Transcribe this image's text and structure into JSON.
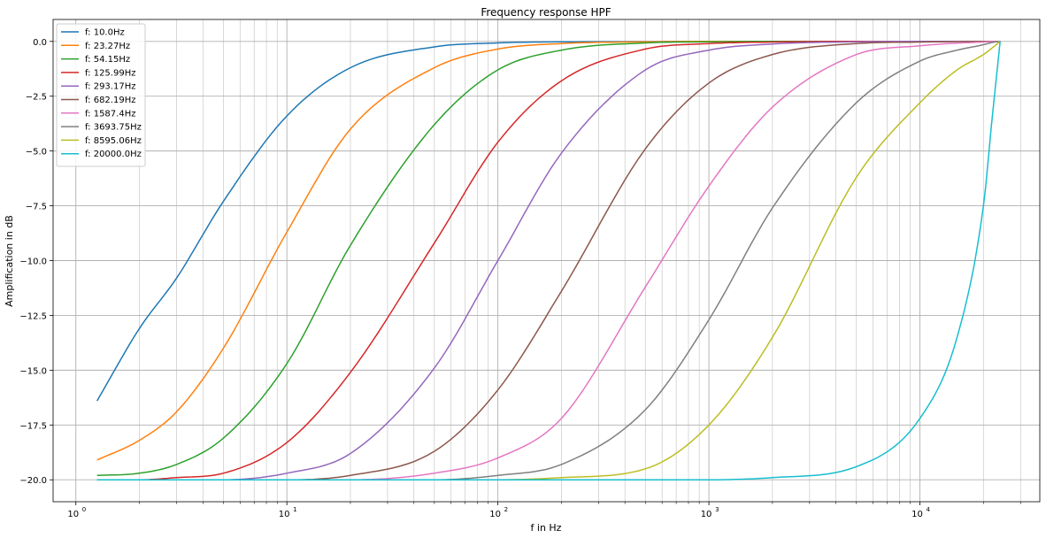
{
  "chart_data": {
    "type": "line",
    "title": "Frequency response HPF",
    "xlabel": "f in Hz",
    "ylabel": "Amplification in dB",
    "xscale": "log",
    "xlim": [
      0.78,
      37000
    ],
    "ylim": [
      -21,
      1
    ],
    "x_ticks": [
      {
        "value": 1,
        "base": "10",
        "exp": "0"
      },
      {
        "value": 10,
        "base": "10",
        "exp": "1"
      },
      {
        "value": 100,
        "base": "10",
        "exp": "2"
      },
      {
        "value": 1000,
        "base": "10",
        "exp": "3"
      },
      {
        "value": 10000,
        "base": "10",
        "exp": "4"
      }
    ],
    "y_ticks": [
      {
        "value": 0,
        "label": "0.0"
      },
      {
        "value": -2.5,
        "label": "−2.5"
      },
      {
        "value": -5,
        "label": "−5.0"
      },
      {
        "value": -7.5,
        "label": "−7.5"
      },
      {
        "value": -10,
        "label": "−10.0"
      },
      {
        "value": -12.5,
        "label": "−12.5"
      },
      {
        "value": -15,
        "label": "−15.0"
      },
      {
        "value": -17.5,
        "label": "−17.5"
      },
      {
        "value": -20,
        "label": "−20.0"
      }
    ],
    "grid": "major+minor",
    "legend_position": "upper-left",
    "x": [
      1.26,
      2,
      3,
      5,
      10,
      20,
      50,
      100,
      200,
      500,
      1000,
      2000,
      5000,
      10000,
      15000,
      20000,
      22000,
      24000
    ],
    "series": [
      {
        "name": "f: 10.0Hz",
        "color": "#1f77b4",
        "values": [
          -16.4,
          -13.1,
          -10.8,
          -7.3,
          -3.4,
          -1.2,
          -0.25,
          -0.07,
          -0.02,
          -0.01,
          0,
          0,
          0,
          0,
          0,
          0,
          0,
          0
        ]
      },
      {
        "name": "f: 23.27Hz",
        "color": "#ff7f0e",
        "values": [
          -19.1,
          -18.2,
          -16.9,
          -14.0,
          -8.7,
          -4.0,
          -1.2,
          -0.35,
          -0.1,
          -0.02,
          0,
          0,
          0,
          0,
          0,
          0,
          0,
          0
        ]
      },
      {
        "name": "f: 54.15Hz",
        "color": "#2ca02c",
        "values": [
          -19.8,
          -19.7,
          -19.3,
          -18.1,
          -14.7,
          -9.3,
          -3.8,
          -1.3,
          -0.4,
          -0.07,
          -0.02,
          0,
          0,
          0,
          0,
          0,
          0,
          0
        ]
      },
      {
        "name": "f: 125.99Hz",
        "color": "#d62728",
        "values": [
          -20.0,
          -20.0,
          -19.9,
          -19.7,
          -18.3,
          -15.1,
          -9.2,
          -4.6,
          -1.8,
          -0.35,
          -0.1,
          -0.03,
          0,
          0,
          0,
          0,
          0,
          0
        ]
      },
      {
        "name": "f: 293.17Hz",
        "color": "#9467bd",
        "values": [
          -20.0,
          -20.0,
          -20.0,
          -20.0,
          -19.7,
          -18.8,
          -14.9,
          -10.0,
          -5.1,
          -1.3,
          -0.4,
          -0.12,
          -0.02,
          0,
          0,
          0,
          0,
          0
        ]
      },
      {
        "name": "f: 682.19Hz",
        "color": "#8c564b",
        "values": [
          -20.0,
          -20.0,
          -20.0,
          -20.0,
          -20.0,
          -19.8,
          -18.7,
          -15.9,
          -11.4,
          -4.9,
          -1.9,
          -0.6,
          -0.1,
          -0.03,
          -0.01,
          0,
          0,
          0
        ]
      },
      {
        "name": "f: 1587.4Hz",
        "color": "#e377c2",
        "values": [
          -20.0,
          -20.0,
          -20.0,
          -20.0,
          -20.0,
          -20.0,
          -19.7,
          -19.0,
          -17.2,
          -11.2,
          -6.6,
          -3.0,
          -0.6,
          -0.2,
          -0.08,
          -0.03,
          -0.01,
          0
        ]
      },
      {
        "name": "f: 3693.75Hz",
        "color": "#7f7f7f",
        "values": [
          -20.0,
          -20.0,
          -20.0,
          -20.0,
          -20.0,
          -20.0,
          -20.0,
          -19.8,
          -19.3,
          -16.8,
          -12.7,
          -7.6,
          -2.8,
          -0.9,
          -0.4,
          -0.15,
          -0.05,
          0
        ]
      },
      {
        "name": "f: 8595.06Hz",
        "color": "#bcbd22",
        "values": [
          -20.0,
          -20.0,
          -20.0,
          -20.0,
          -20.0,
          -20.0,
          -20.0,
          -20.0,
          -19.9,
          -19.5,
          -17.5,
          -13.5,
          -6.2,
          -2.8,
          -1.3,
          -0.6,
          -0.3,
          0
        ]
      },
      {
        "name": "f: 20000.0Hz",
        "color": "#17becf",
        "values": [
          -20.0,
          -20.0,
          -20.0,
          -20.0,
          -20.0,
          -20.0,
          -20.0,
          -20.0,
          -20.0,
          -20.0,
          -20.0,
          -19.9,
          -19.4,
          -17.2,
          -13.5,
          -7.5,
          -3.5,
          0
        ]
      }
    ]
  }
}
